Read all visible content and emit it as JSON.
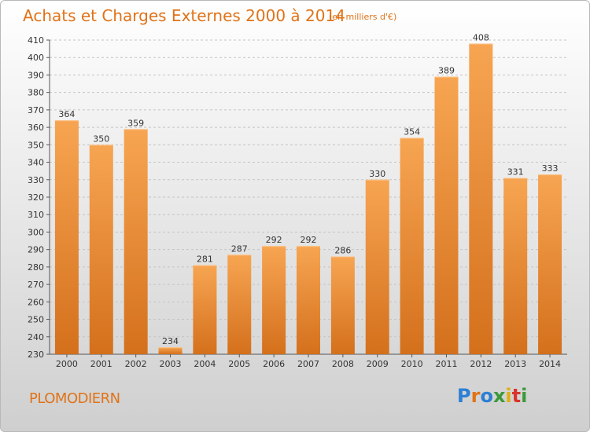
{
  "header": {
    "title": "Achats et Charges Externes 2000 à 2014",
    "unit": "(en milliers d'€)"
  },
  "footer": {
    "commune": "PLOMODIERN",
    "logo_text": "Proxiti",
    "logo_letters": [
      "P",
      "r",
      "o",
      "x",
      "i",
      "t",
      "i"
    ],
    "logo_colors": [
      "#2b7fd4",
      "#e07318",
      "#2b7fd4",
      "#3a9a3a",
      "#e0b010",
      "#d9342b",
      "#3a9a3a"
    ]
  },
  "chart_data": {
    "type": "bar",
    "title": "Achats et Charges Externes 2000 à 2014",
    "xlabel": "",
    "ylabel": "",
    "categories": [
      "2000",
      "2001",
      "2002",
      "2003",
      "2004",
      "2005",
      "2006",
      "2007",
      "2008",
      "2009",
      "2010",
      "2011",
      "2012",
      "2013",
      "2014"
    ],
    "values": [
      364,
      350,
      359,
      234,
      281,
      287,
      292,
      292,
      286,
      330,
      354,
      389,
      408,
      331,
      333
    ],
    "ylim": [
      230,
      410
    ],
    "yticks": [
      230,
      240,
      250,
      260,
      270,
      280,
      290,
      300,
      310,
      320,
      330,
      340,
      350,
      360,
      370,
      380,
      390,
      400,
      410
    ],
    "grid": true,
    "data_labels": true,
    "bar_color_top": "#f7a552",
    "bar_color_bottom": "#d4701c"
  }
}
